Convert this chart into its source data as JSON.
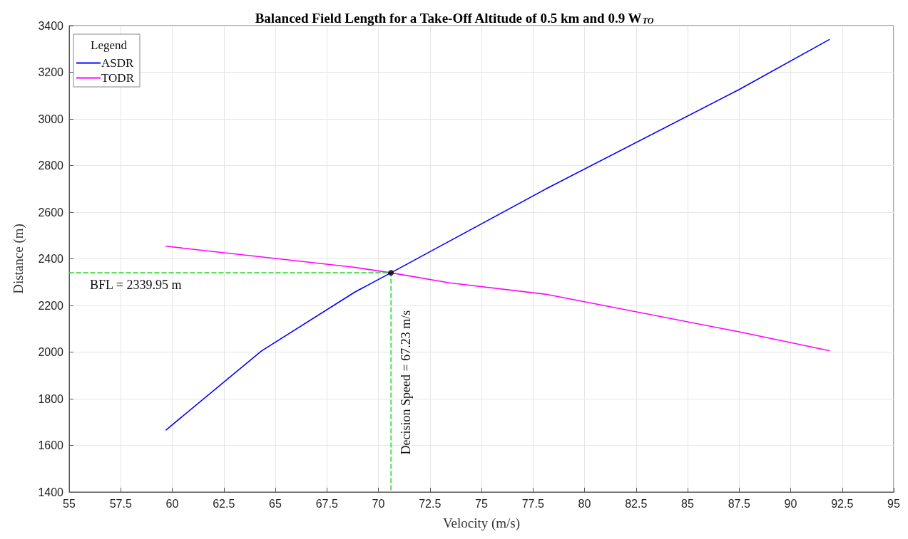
{
  "chart_data": {
    "type": "line",
    "title": "Balanced Field Length for a Take-Off Altitude of 0.5 km and 0.9 W$_{TO}$",
    "xlabel": "Velocity (m/s)",
    "ylabel": "Distance (m)",
    "legend_title": "Legend",
    "series": [
      {
        "name": "ASDR",
        "color": "#0000ff",
        "x": [
          59.7,
          64.33,
          68.87,
          70.61,
          78.13,
          87.5,
          91.87
        ],
        "values": [
          1666,
          2005,
          2258,
          2340,
          2700,
          3126,
          3340
        ]
      },
      {
        "name": "TODR",
        "color": "#ff00ff",
        "x": [
          59.7,
          68.8,
          70.61,
          73.45,
          78.13,
          87.5,
          91.87
        ],
        "values": [
          2454,
          2364,
          2340,
          2297,
          2248,
          2087,
          2006
        ]
      },
      {
        "color": "#33dd33",
        "line_style": "dashed",
        "x": [
          55,
          70.61,
          70.61
        ],
        "values": [
          2340,
          2340,
          1400
        ]
      },
      {
        "type": "scatter",
        "marker": "circle",
        "color": "#000000",
        "x": [
          70.61
        ],
        "values": [
          2340
        ]
      }
    ],
    "annotations": [
      {
        "text": "BFL = 2339.95 m",
        "x": 56,
        "y": 2339.95
      },
      {
        "text": "Decision Speed = 67.23 m/s",
        "x": 70.61,
        "y": 1870
      }
    ],
    "xlim": [
      55,
      95
    ],
    "xticks": [
      55,
      {
        "value": 57.5,
        "label": "57.5"
      },
      60,
      {
        "value": 62.5,
        "label": "62.5"
      },
      65,
      {
        "value": 67.5,
        "label": "67.5"
      },
      70,
      {
        "value": 72.5,
        "label": "72.5"
      },
      75,
      {
        "value": 77.5,
        "label": "77.5"
      },
      80,
      {
        "value": 82.5,
        "label": "82.5"
      },
      85,
      {
        "value": 87.5,
        "label": "87.5"
      },
      90,
      {
        "value": 92.5,
        "label": "92.5"
      },
      95
    ],
    "ylim": [
      1400,
      3400
    ],
    "yticks": [
      1400,
      1600,
      1800,
      2000,
      2200,
      2400,
      2600,
      2800,
      3000,
      3200,
      3400
    ],
    "grid": true,
    "legend": "top left",
    "marker": "none",
    "line_style": "solid"
  }
}
